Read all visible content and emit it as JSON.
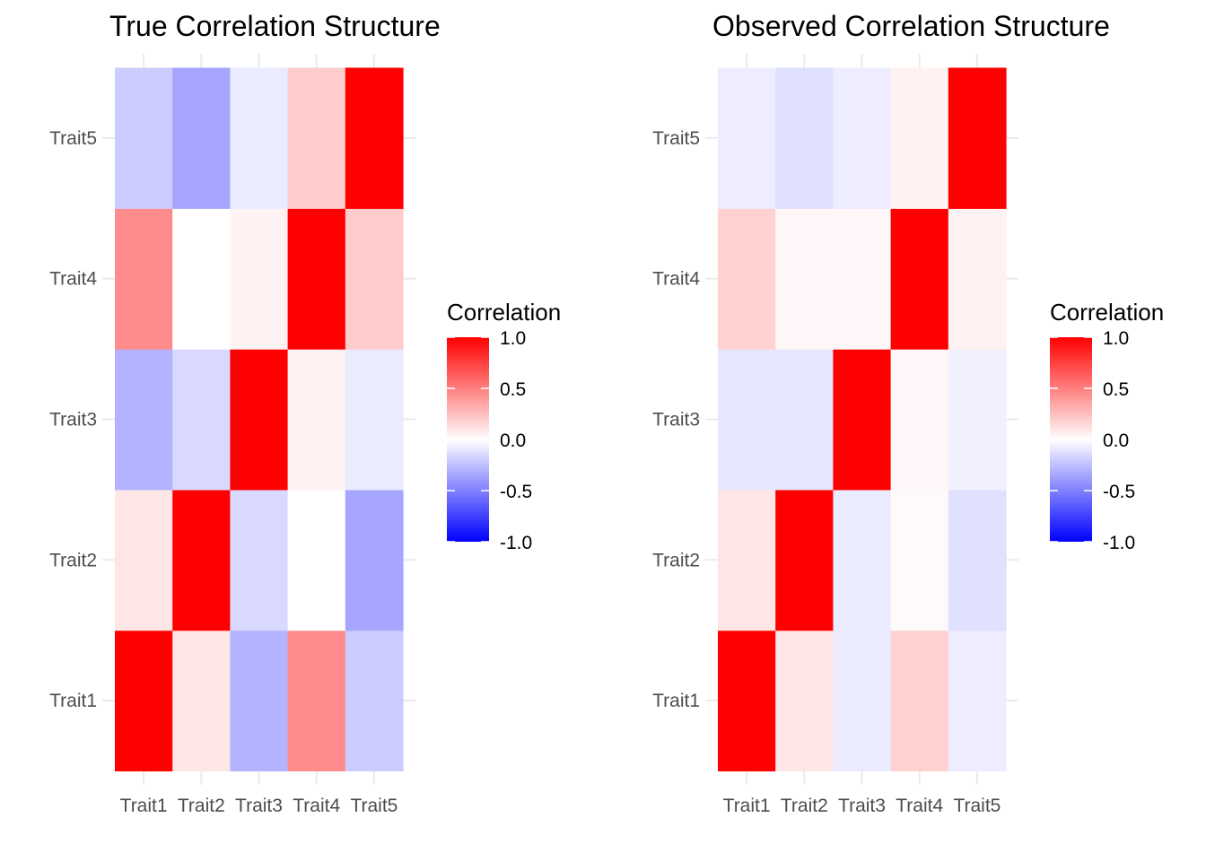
{
  "chart_data": [
    {
      "type": "heatmap",
      "title": "True Correlation Structure",
      "x_categories": [
        "Trait1",
        "Trait2",
        "Trait3",
        "Trait4",
        "Trait5"
      ],
      "y_categories": [
        "Trait1",
        "Trait2",
        "Trait3",
        "Trait4",
        "Trait5"
      ],
      "matrix": [
        [
          1.0,
          0.1,
          -0.3,
          0.45,
          -0.2
        ],
        [
          0.1,
          1.0,
          -0.15,
          0.0,
          -0.35
        ],
        [
          -0.3,
          -0.15,
          1.0,
          0.05,
          -0.08
        ],
        [
          0.45,
          0.0,
          0.05,
          1.0,
          0.2
        ],
        [
          -0.2,
          -0.35,
          -0.08,
          0.2,
          1.0
        ]
      ],
      "legend": {
        "title": "Correlation",
        "ticks": [
          "1.0",
          "0.5",
          "0.0",
          "-0.5",
          "-1.0"
        ],
        "tick_values": [
          1.0,
          0.5,
          0.0,
          -0.5,
          -1.0
        ],
        "range": [
          -1,
          1
        ],
        "low_color": "#0000FF",
        "mid_color": "#FFFFFF",
        "high_color": "#FF0000"
      },
      "grid": true
    },
    {
      "type": "heatmap",
      "title": "Observed Correlation Structure",
      "x_categories": [
        "Trait1",
        "Trait2",
        "Trait3",
        "Trait4",
        "Trait5"
      ],
      "y_categories": [
        "Trait1",
        "Trait2",
        "Trait3",
        "Trait4",
        "Trait5"
      ],
      "matrix": [
        [
          1.0,
          0.1,
          -0.08,
          0.18,
          -0.07
        ],
        [
          0.1,
          1.0,
          -0.08,
          0.02,
          -0.12
        ],
        [
          -0.1,
          -0.1,
          1.0,
          0.03,
          -0.06
        ],
        [
          0.18,
          0.03,
          0.03,
          1.0,
          0.05
        ],
        [
          -0.07,
          -0.12,
          -0.07,
          0.05,
          1.0
        ]
      ],
      "legend": {
        "title": "Correlation",
        "ticks": [
          "1.0",
          "0.5",
          "0.0",
          "-0.5",
          "-1.0"
        ],
        "tick_values": [
          1.0,
          0.5,
          0.0,
          -0.5,
          -1.0
        ],
        "range": [
          -1,
          1
        ],
        "low_color": "#0000FF",
        "mid_color": "#FFFFFF",
        "high_color": "#FF0000"
      },
      "grid": true
    }
  ]
}
